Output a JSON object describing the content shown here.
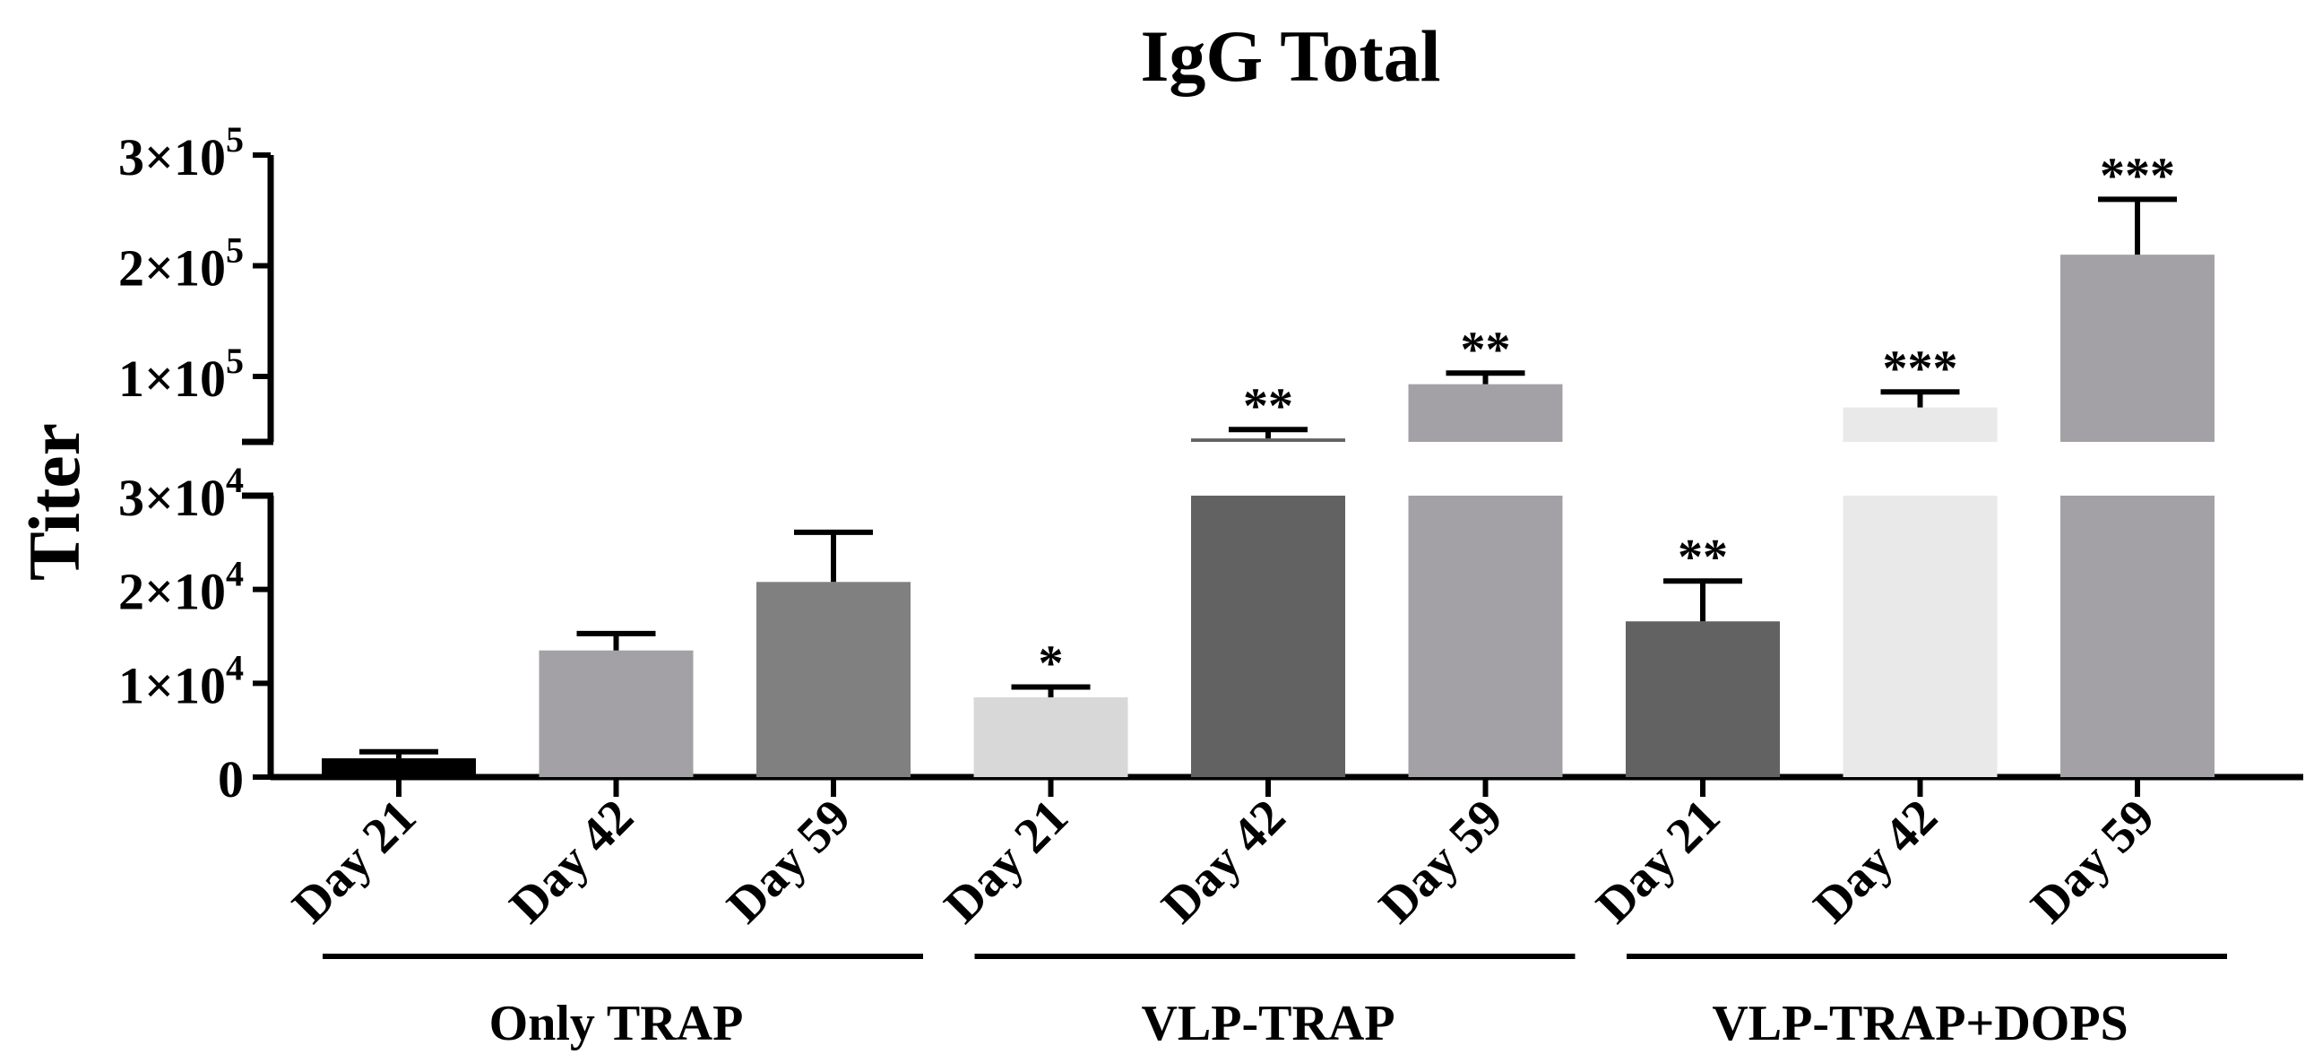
{
  "chart_data": {
    "type": "bar",
    "title": "IgG Total",
    "ylabel": "Titer",
    "xlabel": "",
    "axis_break": {
      "lower_range": [
        0,
        30000
      ],
      "upper_range": [
        40000,
        300000
      ]
    },
    "y_ticks_lower": [
      {
        "value": 0,
        "label": "0",
        "sup": ""
      },
      {
        "value": 10000,
        "label": "1×10",
        "sup": "4"
      },
      {
        "value": 20000,
        "label": "2×10",
        "sup": "4"
      },
      {
        "value": 30000,
        "label": "3×10",
        "sup": "4"
      }
    ],
    "y_ticks_upper": [
      {
        "value": 100000,
        "label": "1×10",
        "sup": "5"
      },
      {
        "value": 200000,
        "label": "2×10",
        "sup": "5"
      },
      {
        "value": 300000,
        "label": "3×10",
        "sup": "5"
      }
    ],
    "bars": [
      {
        "category": "Day 21",
        "group": "Only TRAP",
        "value": 2000,
        "error": 700,
        "color": "#000000",
        "significance": ""
      },
      {
        "category": "Day 42",
        "group": "Only TRAP",
        "value": 13500,
        "error": 1800,
        "color": "#a3a1a6",
        "significance": ""
      },
      {
        "category": "Day 59",
        "group": "Only TRAP",
        "value": 20800,
        "error": 5300,
        "color": "#808080",
        "significance": ""
      },
      {
        "category": "Day 21",
        "group": "VLP-TRAP",
        "value": 8500,
        "error": 1100,
        "color": "#d8d8d8",
        "significance": "*"
      },
      {
        "category": "Day 42",
        "group": "VLP-TRAP",
        "value": 44000,
        "error": 8000,
        "color": "#626262",
        "significance": "**"
      },
      {
        "category": "Day 59",
        "group": "VLP-TRAP",
        "value": 93000,
        "error": 10000,
        "color": "#a3a1a6",
        "significance": "**"
      },
      {
        "category": "Day 21",
        "group": "VLP-TRAP+DOPS",
        "value": 16600,
        "error": 4300,
        "color": "#626262",
        "significance": "**"
      },
      {
        "category": "Day 42",
        "group": "VLP-TRAP+DOPS",
        "value": 72000,
        "error": 14000,
        "color": "#e9e9e9",
        "significance": "***"
      },
      {
        "category": "Day 59",
        "group": "VLP-TRAP+DOPS",
        "value": 210000,
        "error": 50000,
        "color": "#a3a1a6",
        "significance": "***"
      }
    ],
    "groups": [
      "Only TRAP",
      "VLP-TRAP",
      "VLP-TRAP+DOPS"
    ]
  }
}
